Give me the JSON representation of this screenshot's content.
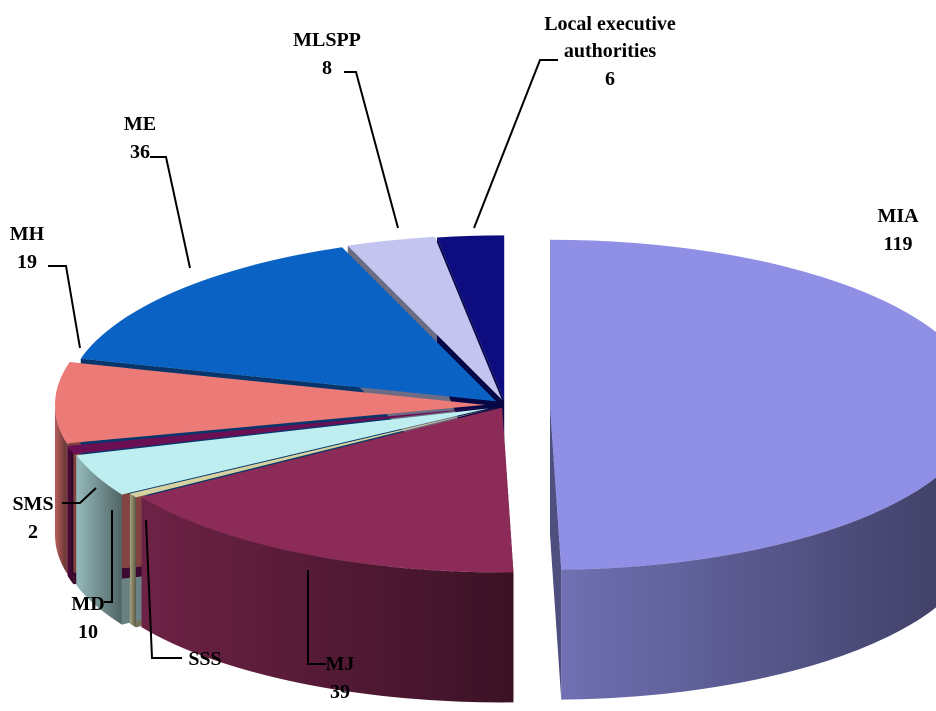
{
  "chart_data": {
    "type": "pie",
    "style": "3d-exploded",
    "slices": [
      {
        "label": "MIA",
        "value": 119,
        "color": "#8f8fe6"
      },
      {
        "label": "MJ",
        "value": 39,
        "color": "#8c2b58"
      },
      {
        "label": "SSS",
        "value": 1,
        "color": "#d6d2a0"
      },
      {
        "label": "MD",
        "value": 10,
        "color": "#bfeef0"
      },
      {
        "label": "SMS",
        "value": 2,
        "color": "#6b0f55"
      },
      {
        "label": "MH",
        "value": 19,
        "color": "#ec7a76"
      },
      {
        "label": "ME",
        "value": 36,
        "color": "#0a63c4"
      },
      {
        "label": "MLSPP",
        "value": 8,
        "color": "#c4c4f0"
      },
      {
        "label": "Local executive authorities",
        "value": 6,
        "color": "#0d0d80"
      }
    ],
    "labels": [
      {
        "slice": "MIA",
        "lines": [
          "MIA",
          "119"
        ]
      },
      {
        "slice": "MJ",
        "lines": [
          "MJ",
          "39"
        ]
      },
      {
        "slice": "SSS",
        "lines": [
          "SSS"
        ]
      },
      {
        "slice": "MD",
        "lines": [
          "MD",
          "10"
        ]
      },
      {
        "slice": "SMS",
        "lines": [
          "SMS",
          "2"
        ]
      },
      {
        "slice": "MH",
        "lines": [
          "MH",
          "19"
        ]
      },
      {
        "slice": "ME",
        "lines": [
          "ME",
          "36"
        ]
      },
      {
        "slice": "MLSPP",
        "lines": [
          "MLSPP",
          "8"
        ]
      },
      {
        "slice": "Local executive authorities",
        "lines": [
          "Local executive",
          "authorities",
          "6"
        ]
      }
    ]
  }
}
